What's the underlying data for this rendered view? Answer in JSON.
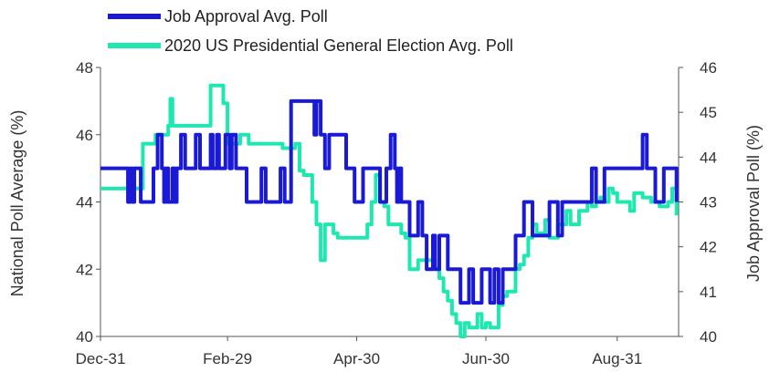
{
  "colors": {
    "job_approval": "#1a1ad6",
    "election": "#1ee8b0",
    "axis": "#555555",
    "text": "#333333"
  },
  "chart_data": {
    "type": "line",
    "legend": [
      "Job Approval Avg. Poll",
      "2020 US Presidential General Election Avg. Poll"
    ],
    "legend_position": "top-left",
    "grid": false,
    "x_ticks": [
      "Dec-31",
      "Feb-29",
      "Apr-30",
      "Jun-30",
      "Aug-31"
    ],
    "x_tick_days": [
      0,
      60,
      121,
      182,
      244
    ],
    "xlim_days": [
      0,
      273
    ],
    "ylabel_left": "National Poll Average (%)",
    "ylabel_right": "Job Approval Poll (%)",
    "ylim_left": [
      40,
      48
    ],
    "yticks_left": [
      40,
      42,
      44,
      46,
      48
    ],
    "ylim_right": [
      40,
      46
    ],
    "yticks_right": [
      40,
      41,
      42,
      43,
      44,
      45,
      46
    ],
    "series": [
      {
        "name": "Job Approval Avg. Poll",
        "axis": "left",
        "x_days": [
          0,
          8,
          12,
          13,
          14,
          15,
          16,
          18,
          19,
          20,
          24,
          25,
          26,
          27,
          28,
          29,
          30,
          31,
          32,
          34,
          35,
          36,
          37,
          38,
          40,
          42,
          44,
          45,
          47,
          48,
          49,
          50,
          52,
          53,
          54,
          55,
          56,
          58,
          59,
          60,
          61,
          62,
          63,
          64,
          66,
          68,
          69,
          70,
          71,
          72,
          74,
          76,
          78,
          80,
          82,
          84,
          85,
          86,
          87,
          88,
          90,
          92,
          94,
          96,
          98,
          100,
          101,
          102,
          104,
          106,
          108,
          110,
          112,
          114,
          116,
          118,
          120,
          121,
          122,
          124,
          126,
          128,
          130,
          132,
          134,
          135,
          136,
          137,
          138,
          139,
          140,
          141,
          142,
          143,
          144,
          146,
          148,
          150,
          152,
          154,
          156,
          157,
          158,
          160,
          162,
          164,
          166,
          168,
          170,
          172,
          174,
          176,
          178,
          180,
          182,
          184,
          186,
          188,
          190,
          192,
          194,
          196,
          198,
          200,
          202,
          204,
          206,
          208,
          210,
          212,
          214,
          216,
          218,
          220,
          222,
          224,
          226,
          228,
          230,
          232,
          234,
          236,
          238,
          240,
          242,
          244,
          246,
          248,
          250,
          252,
          254,
          256,
          258,
          260,
          262,
          264,
          266,
          268,
          270,
          272
        ],
        "values": [
          45,
          45,
          45,
          44,
          45,
          44,
          45,
          45,
          44,
          44,
          44,
          45,
          45,
          46,
          46,
          45,
          44,
          45,
          44,
          45,
          44,
          45,
          45,
          46,
          45,
          45,
          45,
          46,
          45,
          45,
          45,
          45,
          46,
          45,
          45,
          46,
          45,
          45,
          46,
          46,
          45,
          46,
          46,
          45,
          45,
          45,
          44,
          44,
          44,
          44,
          44,
          45,
          44,
          44,
          44,
          44,
          45,
          45,
          44,
          44,
          47,
          47,
          47,
          47,
          47,
          47,
          46,
          47,
          46,
          45,
          46,
          46,
          46,
          46,
          45,
          45,
          44,
          44,
          44,
          45,
          45,
          45,
          45,
          44,
          44,
          45,
          45,
          46,
          46,
          45,
          44,
          45,
          44,
          44,
          44,
          43,
          43,
          44,
          43,
          42,
          42,
          43,
          42,
          43,
          43,
          42,
          42,
          42,
          41,
          41,
          42,
          41,
          41,
          42,
          42,
          41,
          42,
          41,
          42,
          42,
          42,
          43,
          43,
          44,
          44,
          43,
          43,
          43,
          43,
          44,
          44,
          43,
          44,
          44,
          44,
          44,
          44,
          44,
          44,
          45,
          44,
          44,
          45,
          45,
          45,
          45,
          45,
          45,
          45,
          45,
          45,
          46,
          45,
          45,
          44,
          44,
          45,
          45,
          45,
          44
        ]
      },
      {
        "name": "2020 US Presidential General Election Avg. Poll",
        "axis": "right",
        "x_days": [
          0,
          10,
          14,
          15,
          16,
          18,
          20,
          22,
          25,
          26,
          28,
          30,
          31,
          32,
          33,
          34,
          35,
          36,
          38,
          40,
          42,
          44,
          46,
          48,
          50,
          52,
          54,
          56,
          58,
          60,
          62,
          64,
          66,
          68,
          70,
          72,
          74,
          76,
          78,
          80,
          82,
          84,
          86,
          88,
          90,
          92,
          94,
          96,
          98,
          100,
          102,
          104,
          106,
          108,
          110,
          112,
          114,
          116,
          118,
          120,
          122,
          124,
          126,
          128,
          130,
          132,
          134,
          136,
          138,
          140,
          142,
          144,
          146,
          148,
          150,
          152,
          154,
          156,
          158,
          160,
          162,
          164,
          166,
          168,
          170,
          172,
          174,
          176,
          178,
          180,
          182,
          184,
          186,
          188,
          190,
          192,
          194,
          196,
          198,
          200,
          202,
          204,
          206,
          208,
          210,
          212,
          214,
          216,
          218,
          220,
          222,
          224,
          226,
          228,
          230,
          232,
          234,
          236,
          238,
          240,
          242,
          244,
          246,
          248,
          250,
          252,
          254,
          256,
          258,
          260,
          262,
          264,
          266,
          268,
          270,
          272
        ],
        "values": [
          43.3,
          43.3,
          43.3,
          43.3,
          43.3,
          43.3,
          44.3,
          44.3,
          44.3,
          44.5,
          44.5,
          44.5,
          44.5,
          44.7,
          45.3,
          44.7,
          44.7,
          44.7,
          44.7,
          44.7,
          44.7,
          44.7,
          44.7,
          44.7,
          44.7,
          45.6,
          45.6,
          45.6,
          45.2,
          44.3,
          44.3,
          44.3,
          44.5,
          44.5,
          44.3,
          44.3,
          44.3,
          44.3,
          44.3,
          44.3,
          44.3,
          44.3,
          44.2,
          44.2,
          44.2,
          44.3,
          43.7,
          43.6,
          43.6,
          43.0,
          42.5,
          41.7,
          42.5,
          42.5,
          42.3,
          42.2,
          42.2,
          42.2,
          42.2,
          42.2,
          42.2,
          42.2,
          42.5,
          43.0,
          43.6,
          43.0,
          42.9,
          42.5,
          42.5,
          42.5,
          42.3,
          42.2,
          41.5,
          41.5,
          41.7,
          41.7,
          41.7,
          41.7,
          41.5,
          41.3,
          41.0,
          40.8,
          40.5,
          40.3,
          40.0,
          40.3,
          40.2,
          40.2,
          40.5,
          40.2,
          40.3,
          40.2,
          40.2,
          40.7,
          40.9,
          41.0,
          41.0,
          41.5,
          41.6,
          41.8,
          42.2,
          42.5,
          42.3,
          42.3,
          42.6,
          42.2,
          42.2,
          42.5,
          42.5,
          42.8,
          42.5,
          42.5,
          42.8,
          42.8,
          43.0,
          42.9,
          43.0,
          43.1,
          43.0,
          43.3,
          43.2,
          43.0,
          43.0,
          43.0,
          42.8,
          43.2,
          43.2,
          43.1,
          43.1,
          43.0,
          43.0,
          42.9,
          42.9,
          43.0,
          43.3,
          42.7
        ]
      }
    ]
  }
}
